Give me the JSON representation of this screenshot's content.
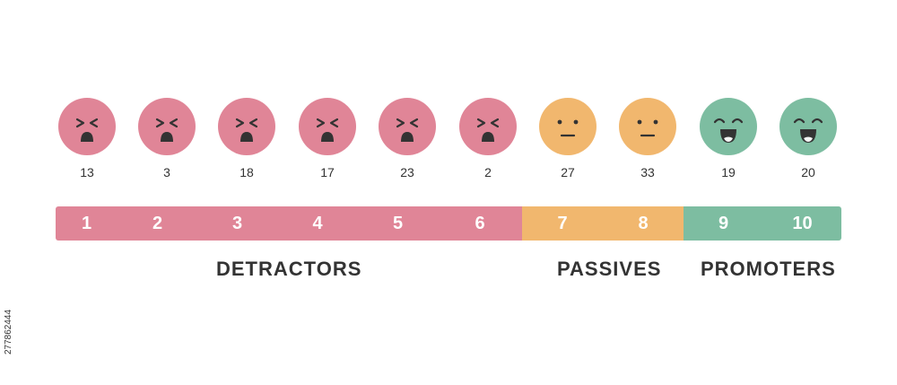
{
  "colors": {
    "detractor": "#e08597",
    "passive": "#f1b76e",
    "promoter": "#7dbda1",
    "ink": "#333333"
  },
  "faces": [
    {
      "count": "13",
      "group": "detractor",
      "icon": "upset-face-icon"
    },
    {
      "count": "3",
      "group": "detractor",
      "icon": "upset-face-icon"
    },
    {
      "count": "18",
      "group": "detractor",
      "icon": "upset-face-icon"
    },
    {
      "count": "17",
      "group": "detractor",
      "icon": "upset-face-icon"
    },
    {
      "count": "23",
      "group": "detractor",
      "icon": "upset-face-icon"
    },
    {
      "count": "2",
      "group": "detractor",
      "icon": "upset-face-icon"
    },
    {
      "count": "27",
      "group": "passive",
      "icon": "neutral-face-icon"
    },
    {
      "count": "33",
      "group": "passive",
      "icon": "neutral-face-icon"
    },
    {
      "count": "19",
      "group": "promoter",
      "icon": "happy-face-icon"
    },
    {
      "count": "20",
      "group": "promoter",
      "icon": "happy-face-icon"
    }
  ],
  "scale": [
    {
      "label": "1",
      "group": "detractor"
    },
    {
      "label": "2",
      "group": "detractor"
    },
    {
      "label": "3",
      "group": "detractor"
    },
    {
      "label": "4",
      "group": "detractor"
    },
    {
      "label": "5",
      "group": "detractor"
    },
    {
      "label": "6",
      "group": "detractor"
    },
    {
      "label": "7",
      "group": "passive"
    },
    {
      "label": "8",
      "group": "passive"
    },
    {
      "label": "9",
      "group": "promoter"
    },
    {
      "label": "10",
      "group": "promoter"
    }
  ],
  "groups": {
    "detractors": "DETRACTORS",
    "passives": "PASSIVES",
    "promoters": "PROMOTERS"
  },
  "side_code": "277862444"
}
